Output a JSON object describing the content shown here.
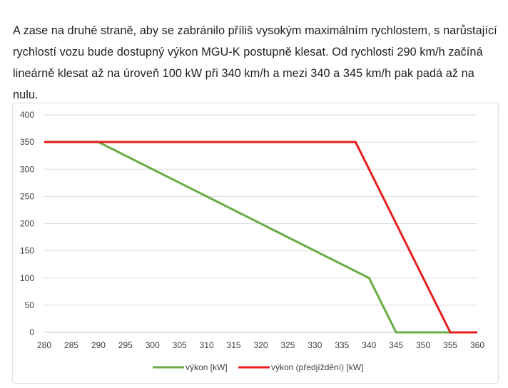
{
  "article": {
    "paragraph": "A zase na druhé straně, aby se zabránilo příliš vysokým maximálním rychlostem, s narůstající rychlostí vozu bude dostupný výkon MGU-K postupně klesat. Od rychlosti 290 km/h začíná lineárně klesat až na úroveň 100 kW při 340 km/h a mezi 340 a 345 km/h pak padá až na nulu."
  },
  "chart_data": {
    "type": "line",
    "title": "",
    "xlabel": "",
    "ylabel": "",
    "xlim": [
      280,
      360
    ],
    "ylim": [
      0,
      400
    ],
    "x_ticks": [
      280,
      285,
      290,
      295,
      300,
      305,
      310,
      315,
      320,
      325,
      330,
      335,
      340,
      345,
      350,
      355,
      360
    ],
    "y_ticks": [
      0,
      50,
      100,
      150,
      200,
      250,
      300,
      350,
      400
    ],
    "grid": "horizontal",
    "legend_position": "bottom",
    "series": [
      {
        "name": "výkon [kW]",
        "color": "#6aac45",
        "points": [
          [
            280,
            350
          ],
          [
            290,
            350
          ],
          [
            340,
            100
          ],
          [
            345,
            0
          ],
          [
            355,
            0
          ]
        ]
      },
      {
        "name": "výkon (předjíždění) [kW]",
        "color": "#e61e1e",
        "points": [
          [
            280,
            350
          ],
          [
            337.5,
            350
          ],
          [
            355,
            0
          ],
          [
            360,
            0
          ]
        ]
      }
    ]
  }
}
